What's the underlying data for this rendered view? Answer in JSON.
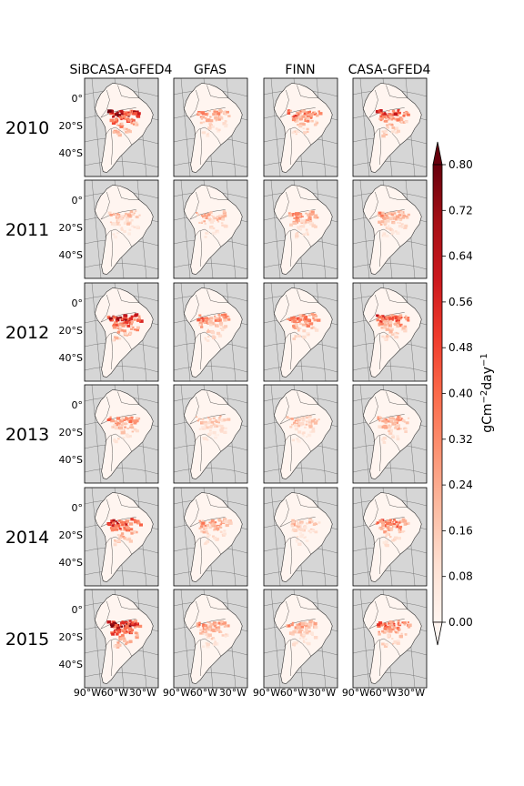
{
  "chart_data": {
    "type": "heatmap",
    "layout": "small-multiples",
    "columns": [
      "SiBCASA-GFED4",
      "GFAS",
      "FINN",
      "CASA-GFED4"
    ],
    "rows": [
      "2010",
      "2011",
      "2012",
      "2013",
      "2014",
      "2015"
    ],
    "lat_ticks": [
      "0°",
      "20°S",
      "40°S"
    ],
    "lon_ticks": [
      "90°W",
      "60°W",
      "30°W"
    ],
    "colorbar": {
      "label_main": "gCm",
      "label_exp1": "−2",
      "label_mid": "day",
      "label_exp2": "−1",
      "ticks": [
        "0.00",
        "0.08",
        "0.16",
        "0.24",
        "0.32",
        "0.40",
        "0.48",
        "0.56",
        "0.64",
        "0.72",
        "0.80"
      ],
      "range": [
        0,
        0.8
      ],
      "extend": "both",
      "colormap": "Reds"
    },
    "colors": {
      "ocean": "#d6d6d6",
      "land_low": "#fff5f0",
      "land_high": "#67000d",
      "coastline": "#333333",
      "graticule": "#7a7a7a"
    },
    "relative_intensity": [
      [
        1.0,
        0.45,
        0.6,
        0.75
      ],
      [
        0.3,
        0.35,
        0.45,
        0.4
      ],
      [
        0.9,
        0.5,
        0.55,
        0.65
      ],
      [
        0.5,
        0.3,
        0.3,
        0.45
      ],
      [
        0.75,
        0.4,
        0.3,
        0.55
      ],
      [
        0.95,
        0.45,
        0.4,
        0.6
      ]
    ]
  }
}
